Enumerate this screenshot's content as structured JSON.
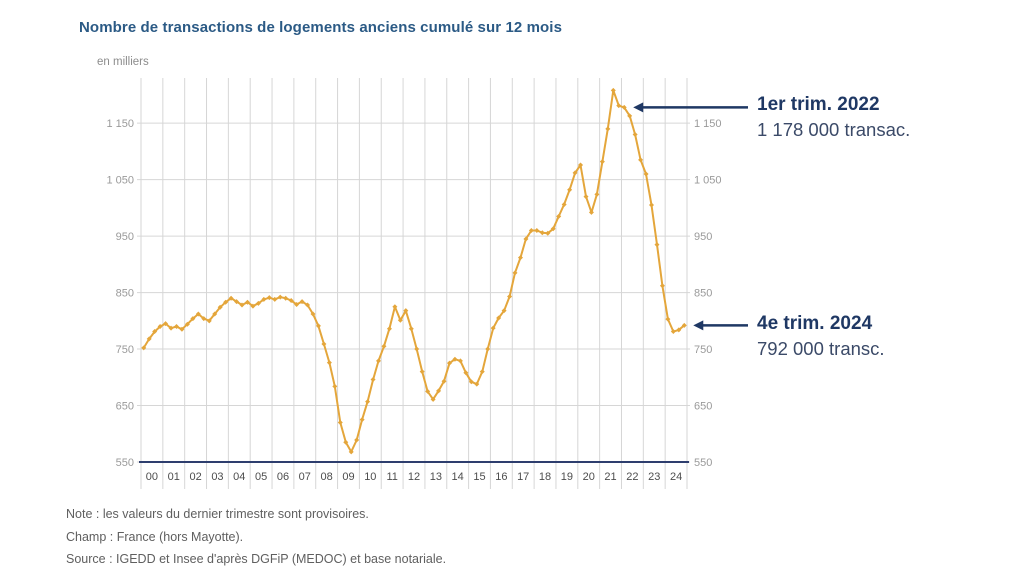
{
  "title": "Nombre de transactions de logements anciens cumulé sur 12 mois",
  "unit_label": "en milliers",
  "annotations": [
    {
      "label": "1er trim. 2022",
      "value": "1 178 000 transac.",
      "target_index": 88
    },
    {
      "label": "4e trim. 2024",
      "value": "792 000 transc.",
      "target_index": 99
    }
  ],
  "notes": [
    "Note : les valeurs du dernier trimestre sont provisoires.",
    "Champ : France (hors Mayotte).",
    "Source : IGEDD et Insee d'après DGFiP (MEDOC) et base notariale."
  ],
  "chart_data": {
    "type": "line",
    "title": "Nombre de transactions de logements anciens cumulé sur 12 mois",
    "ylabel": "en milliers",
    "xlabel": "",
    "frequency": "quarterly",
    "x_start_year": 2000,
    "x_tick_labels": [
      "00",
      "01",
      "02",
      "03",
      "04",
      "05",
      "06",
      "07",
      "08",
      "09",
      "10",
      "11",
      "12",
      "13",
      "14",
      "15",
      "16",
      "17",
      "18",
      "19",
      "20",
      "21",
      "22",
      "23",
      "24"
    ],
    "y_ticks": [
      550,
      650,
      750,
      850,
      950,
      1050,
      1150
    ],
    "y_tick_labels": [
      "550",
      "650",
      "750",
      "850",
      "950",
      "1 050",
      "1 150"
    ],
    "ylim": [
      550,
      1230
    ],
    "grid": true,
    "series": [
      {
        "name": "Transactions de logements anciens, cumul 12 mois (milliers)",
        "values": [
          752,
          768,
          781,
          790,
          795,
          787,
          790,
          785,
          794,
          804,
          812,
          804,
          800,
          812,
          824,
          833,
          840,
          834,
          828,
          833,
          826,
          831,
          838,
          841,
          838,
          842,
          840,
          836,
          829,
          834,
          828,
          812,
          791,
          759,
          726,
          684,
          620,
          585,
          568,
          589,
          625,
          657,
          696,
          729,
          755,
          786,
          825,
          801,
          818,
          786,
          750,
          710,
          675,
          661,
          676,
          693,
          725,
          732,
          729,
          708,
          692,
          688,
          710,
          750,
          787,
          805,
          818,
          843,
          885,
          912,
          945,
          960,
          960,
          956,
          955,
          963,
          985,
          1006,
          1032,
          1062,
          1076,
          1020,
          992,
          1024,
          1082,
          1140,
          1208,
          1181,
          1178,
          1163,
          1130,
          1085,
          1060,
          1005,
          935,
          862,
          803,
          781,
          784,
          792
        ]
      }
    ],
    "colors": {
      "line": "#E4A63B",
      "grid": "#D6D6D6",
      "axis": "#2E3E6E",
      "arrow_navy": "#1F3864",
      "title_blue": "#2B5A85",
      "y_label_gray": "#9A9A9A",
      "x_label_gray": "#4D4D4D"
    }
  }
}
